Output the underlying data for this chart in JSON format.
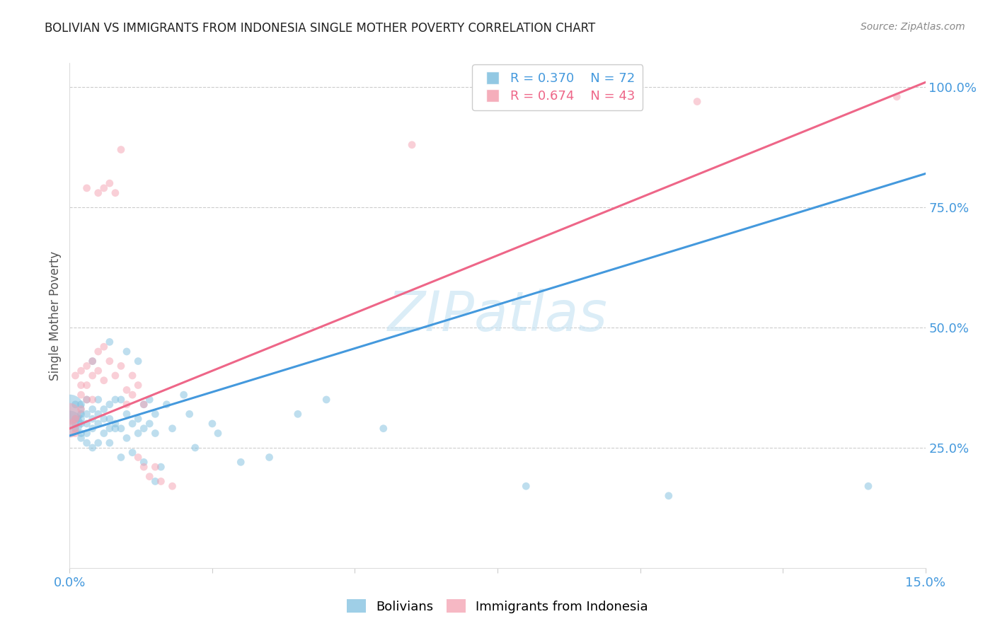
{
  "title": "BOLIVIAN VS IMMIGRANTS FROM INDONESIA SINGLE MOTHER POVERTY CORRELATION CHART",
  "source": "Source: ZipAtlas.com",
  "ylabel": "Single Mother Poverty",
  "watermark": "ZIPatlas",
  "legend_blue_r": "R = 0.370",
  "legend_blue_n": "N = 72",
  "legend_pink_r": "R = 0.674",
  "legend_pink_n": "N = 43",
  "blue_color": "#7fbfdf",
  "pink_color": "#f4a0b0",
  "blue_line_color": "#4499dd",
  "pink_line_color": "#ee6688",
  "blue_scatter": [
    [
      0.0,
      0.33
    ],
    [
      0.0,
      0.3
    ],
    [
      0.001,
      0.31
    ],
    [
      0.001,
      0.29
    ],
    [
      0.001,
      0.34
    ],
    [
      0.001,
      0.3
    ],
    [
      0.002,
      0.3
    ],
    [
      0.002,
      0.32
    ],
    [
      0.002,
      0.34
    ],
    [
      0.002,
      0.28
    ],
    [
      0.002,
      0.31
    ],
    [
      0.002,
      0.27
    ],
    [
      0.003,
      0.32
    ],
    [
      0.003,
      0.3
    ],
    [
      0.003,
      0.28
    ],
    [
      0.003,
      0.35
    ],
    [
      0.003,
      0.26
    ],
    [
      0.004,
      0.31
    ],
    [
      0.004,
      0.29
    ],
    [
      0.004,
      0.33
    ],
    [
      0.004,
      0.25
    ],
    [
      0.004,
      0.43
    ],
    [
      0.005,
      0.32
    ],
    [
      0.005,
      0.35
    ],
    [
      0.005,
      0.3
    ],
    [
      0.005,
      0.26
    ],
    [
      0.006,
      0.31
    ],
    [
      0.006,
      0.28
    ],
    [
      0.006,
      0.33
    ],
    [
      0.007,
      0.47
    ],
    [
      0.007,
      0.29
    ],
    [
      0.007,
      0.34
    ],
    [
      0.007,
      0.26
    ],
    [
      0.007,
      0.31
    ],
    [
      0.008,
      0.3
    ],
    [
      0.008,
      0.35
    ],
    [
      0.008,
      0.29
    ],
    [
      0.009,
      0.29
    ],
    [
      0.009,
      0.35
    ],
    [
      0.009,
      0.23
    ],
    [
      0.01,
      0.32
    ],
    [
      0.01,
      0.27
    ],
    [
      0.01,
      0.45
    ],
    [
      0.011,
      0.3
    ],
    [
      0.011,
      0.24
    ],
    [
      0.012,
      0.43
    ],
    [
      0.012,
      0.31
    ],
    [
      0.012,
      0.28
    ],
    [
      0.013,
      0.34
    ],
    [
      0.013,
      0.29
    ],
    [
      0.013,
      0.22
    ],
    [
      0.014,
      0.35
    ],
    [
      0.014,
      0.3
    ],
    [
      0.015,
      0.32
    ],
    [
      0.015,
      0.28
    ],
    [
      0.015,
      0.18
    ],
    [
      0.016,
      0.21
    ],
    [
      0.017,
      0.34
    ],
    [
      0.018,
      0.29
    ],
    [
      0.02,
      0.36
    ],
    [
      0.021,
      0.32
    ],
    [
      0.022,
      0.25
    ],
    [
      0.025,
      0.3
    ],
    [
      0.026,
      0.28
    ],
    [
      0.03,
      0.22
    ],
    [
      0.035,
      0.23
    ],
    [
      0.04,
      0.32
    ],
    [
      0.045,
      0.35
    ],
    [
      0.055,
      0.29
    ],
    [
      0.08,
      0.17
    ],
    [
      0.105,
      0.15
    ],
    [
      0.14,
      0.17
    ]
  ],
  "pink_scatter": [
    [
      0.0,
      0.32
    ],
    [
      0.0,
      0.29
    ],
    [
      0.001,
      0.31
    ],
    [
      0.001,
      0.28
    ],
    [
      0.001,
      0.4
    ],
    [
      0.002,
      0.38
    ],
    [
      0.002,
      0.41
    ],
    [
      0.002,
      0.36
    ],
    [
      0.002,
      0.33
    ],
    [
      0.003,
      0.42
    ],
    [
      0.003,
      0.38
    ],
    [
      0.003,
      0.35
    ],
    [
      0.003,
      0.79
    ],
    [
      0.004,
      0.43
    ],
    [
      0.004,
      0.4
    ],
    [
      0.004,
      0.35
    ],
    [
      0.005,
      0.45
    ],
    [
      0.005,
      0.41
    ],
    [
      0.005,
      0.78
    ],
    [
      0.006,
      0.46
    ],
    [
      0.006,
      0.39
    ],
    [
      0.006,
      0.79
    ],
    [
      0.007,
      0.43
    ],
    [
      0.007,
      0.8
    ],
    [
      0.008,
      0.78
    ],
    [
      0.008,
      0.4
    ],
    [
      0.009,
      0.42
    ],
    [
      0.009,
      0.87
    ],
    [
      0.01,
      0.37
    ],
    [
      0.01,
      0.34
    ],
    [
      0.011,
      0.4
    ],
    [
      0.011,
      0.36
    ],
    [
      0.012,
      0.38
    ],
    [
      0.012,
      0.23
    ],
    [
      0.013,
      0.21
    ],
    [
      0.013,
      0.34
    ],
    [
      0.014,
      0.19
    ],
    [
      0.015,
      0.21
    ],
    [
      0.016,
      0.18
    ],
    [
      0.018,
      0.17
    ],
    [
      0.06,
      0.88
    ],
    [
      0.11,
      0.97
    ],
    [
      0.145,
      0.98
    ]
  ],
  "xlim": [
    0.0,
    0.15
  ],
  "ylim": [
    0.0,
    1.05
  ],
  "blue_reg": [
    0.0,
    0.15,
    0.275,
    0.82
  ],
  "pink_reg": [
    0.0,
    0.15,
    0.29,
    1.01
  ],
  "figsize": [
    14.06,
    8.92
  ],
  "dpi": 100
}
